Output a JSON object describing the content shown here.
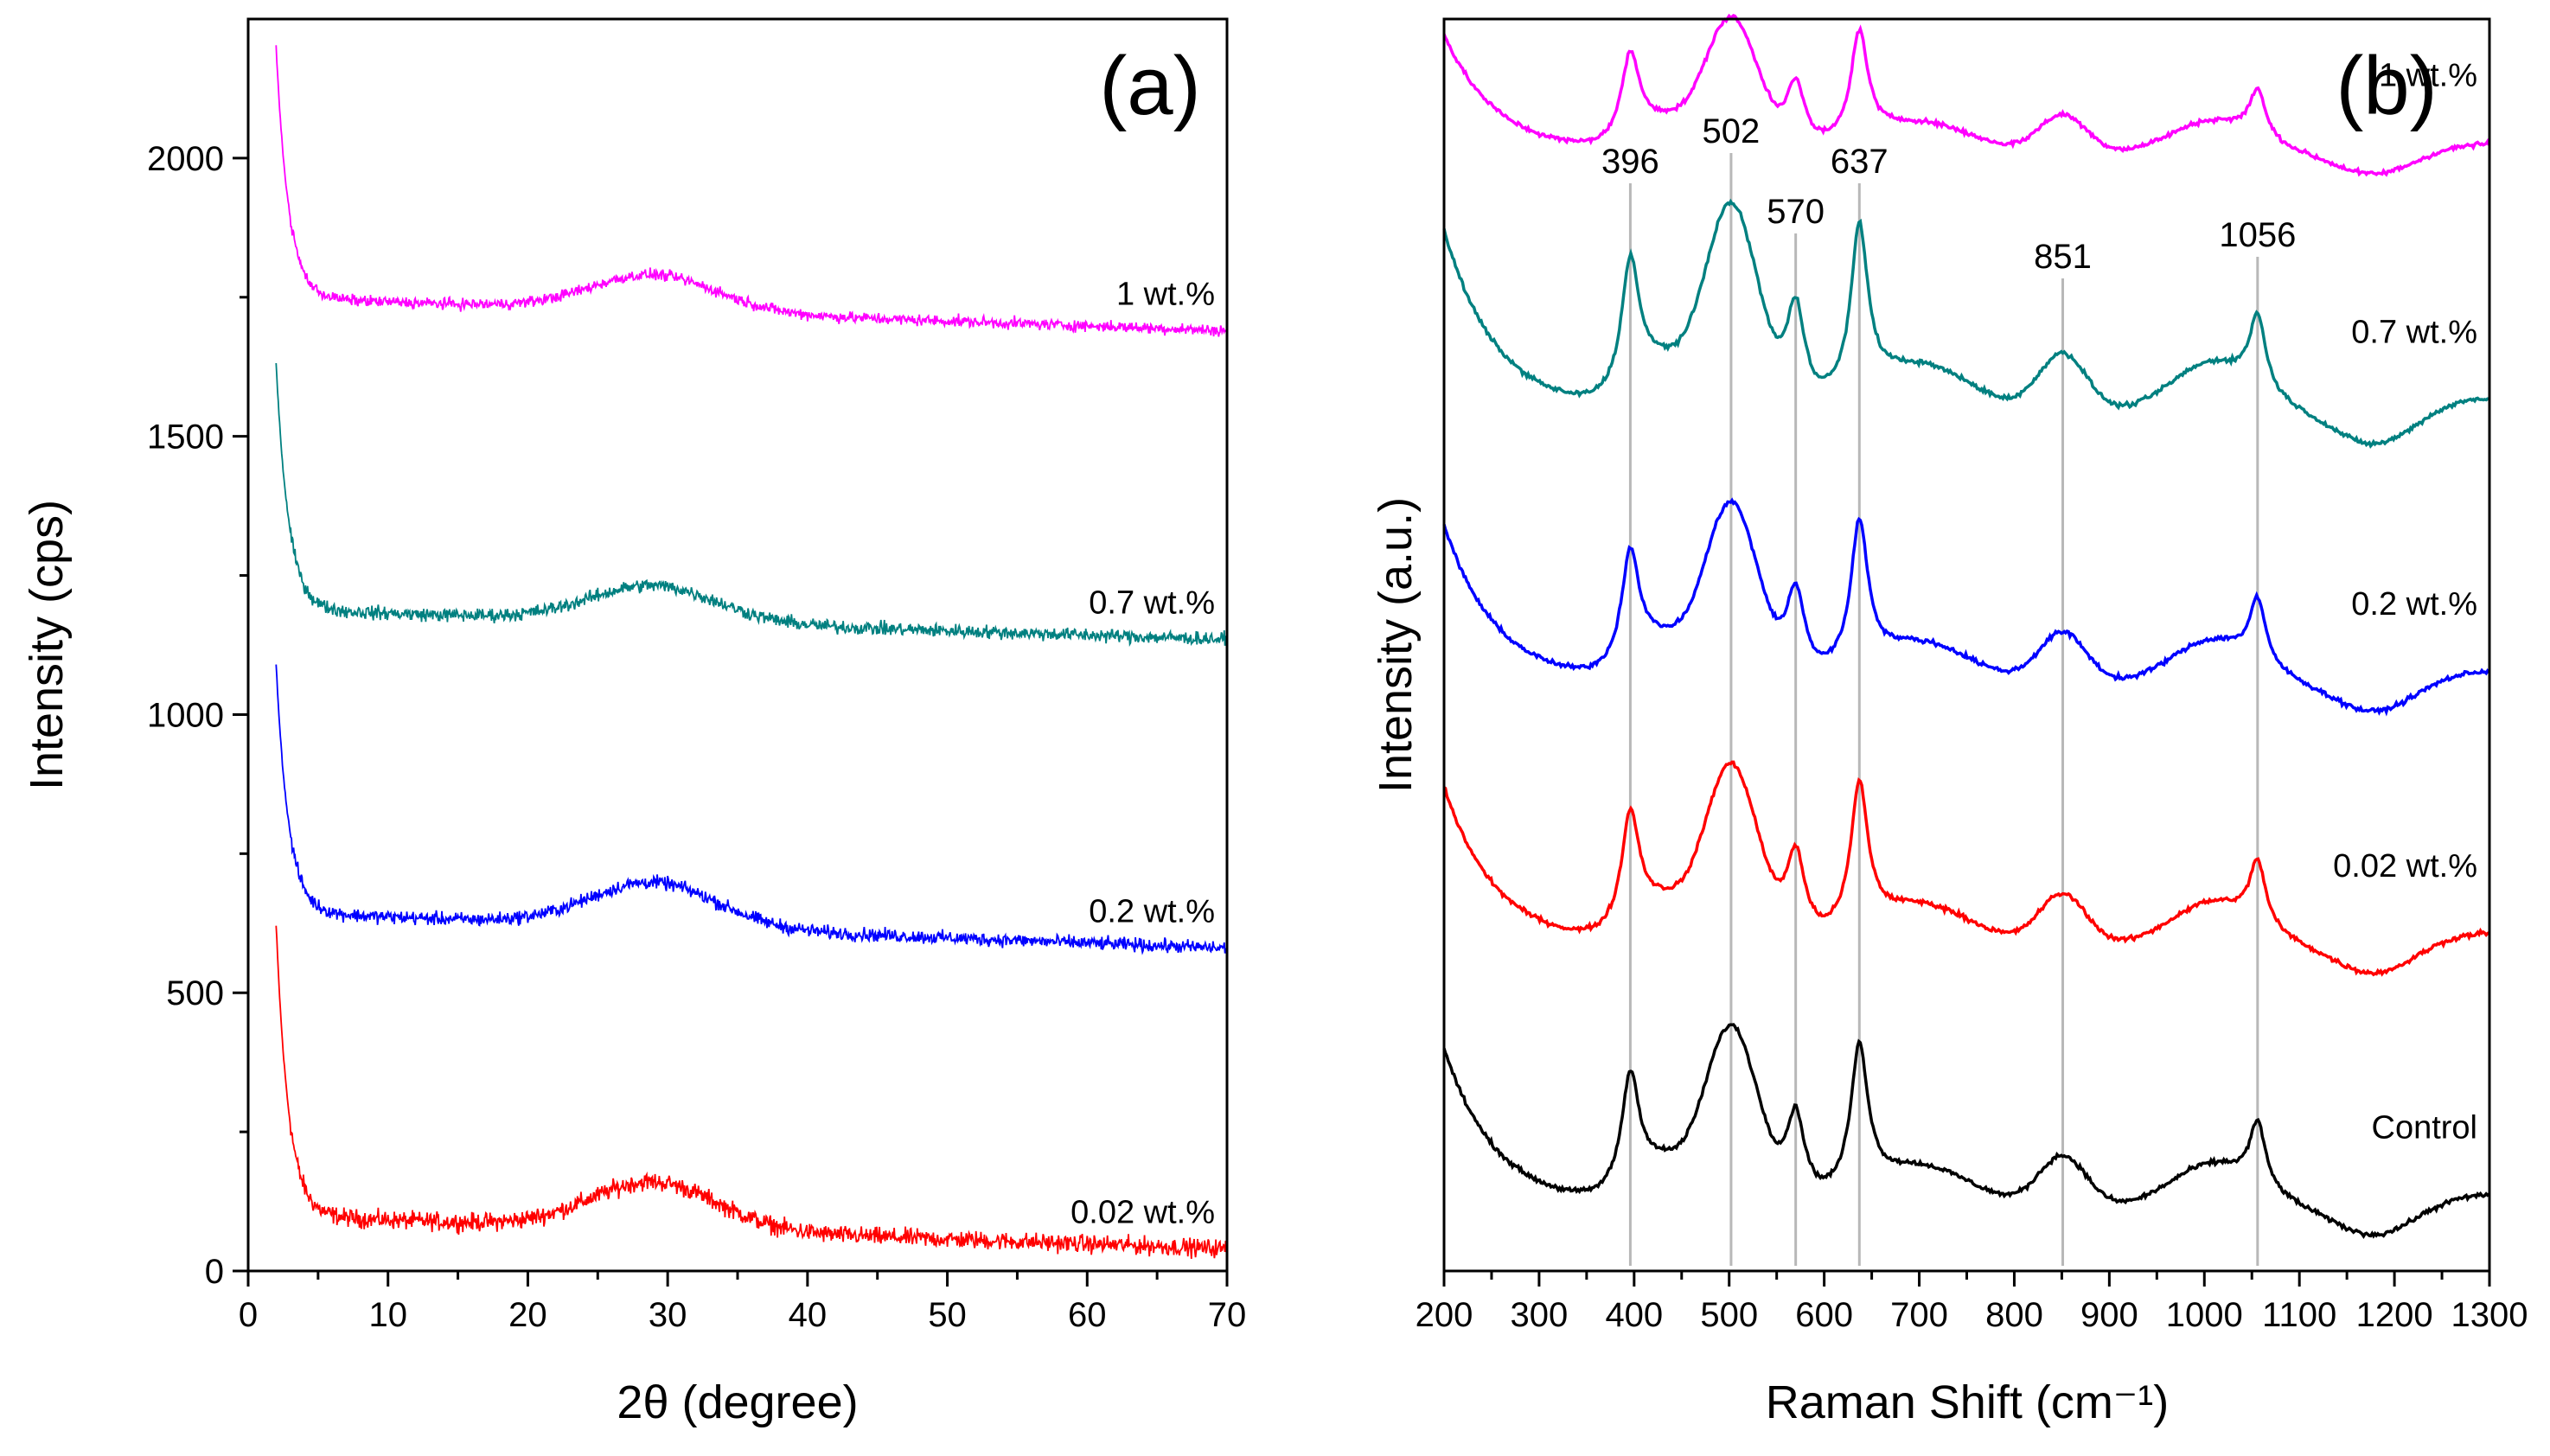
{
  "chart_data": [
    {
      "type": "line",
      "panel_label": "(a)",
      "xlabel": "2θ (degree)",
      "ylabel": "Intensity (cps)",
      "xlim": [
        0,
        70
      ],
      "ylim": [
        0,
        2250
      ],
      "xticks": [
        0,
        10,
        20,
        30,
        40,
        50,
        60,
        70
      ],
      "yticks": [
        0,
        500,
        1000,
        1500,
        2000
      ],
      "grid": false,
      "series": [
        {
          "name": "0.02 wt.%",
          "color": "#ff0000",
          "offset": 0,
          "start": 620,
          "baseline": 60,
          "plateau": 95,
          "tail": 40,
          "peak_height": 85,
          "noise": 16
        },
        {
          "name": "0.2 wt.%",
          "color": "#0000ff",
          "offset": 560,
          "start": 1090,
          "baseline": 620,
          "plateau": 640,
          "tail": 580,
          "peak_height": 80,
          "noise": 12
        },
        {
          "name": "0.7 wt.%",
          "color": "#008080",
          "offset": 1120,
          "start": 1630,
          "baseline": 1160,
          "plateau": 1185,
          "tail": 1135,
          "peak_height": 65,
          "noise": 12
        },
        {
          "name": "1 wt.%",
          "color": "#ff00ff",
          "offset": 1680,
          "start": 2200,
          "baseline": 1725,
          "plateau": 1745,
          "tail": 1690,
          "peak_height": 65,
          "noise": 10
        }
      ],
      "broad_peak_center": 29
    },
    {
      "type": "line",
      "panel_label": "(b)",
      "xlabel": "Raman Shift (cm⁻¹)",
      "ylabel": "Intensity (a.u.)",
      "xlim": [
        200,
        1300
      ],
      "ylim": [
        0,
        11
      ],
      "xticks": [
        200,
        300,
        400,
        500,
        600,
        700,
        800,
        900,
        1000,
        1100,
        1200,
        1300
      ],
      "yticks": [],
      "grid": false,
      "peak_lines": [
        396,
        502,
        570,
        637,
        851,
        1056
      ],
      "series": [
        {
          "name": "Control",
          "color": "#000000",
          "offset": 0,
          "scale": 1.0
        },
        {
          "name": "0.02 wt.%",
          "color": "#ff0000",
          "offset": 2.3,
          "scale": 1.0
        },
        {
          "name": "0.2 wt.%",
          "color": "#0000ff",
          "offset": 4.6,
          "scale": 1.0
        },
        {
          "name": "0.7 wt.%",
          "color": "#008080",
          "offset": 6.9,
          "scale": 1.15
        },
        {
          "name": "1 wt.%",
          "color": "#ff00ff",
          "offset": 9.4,
          "scale": 0.75
        }
      ]
    }
  ]
}
